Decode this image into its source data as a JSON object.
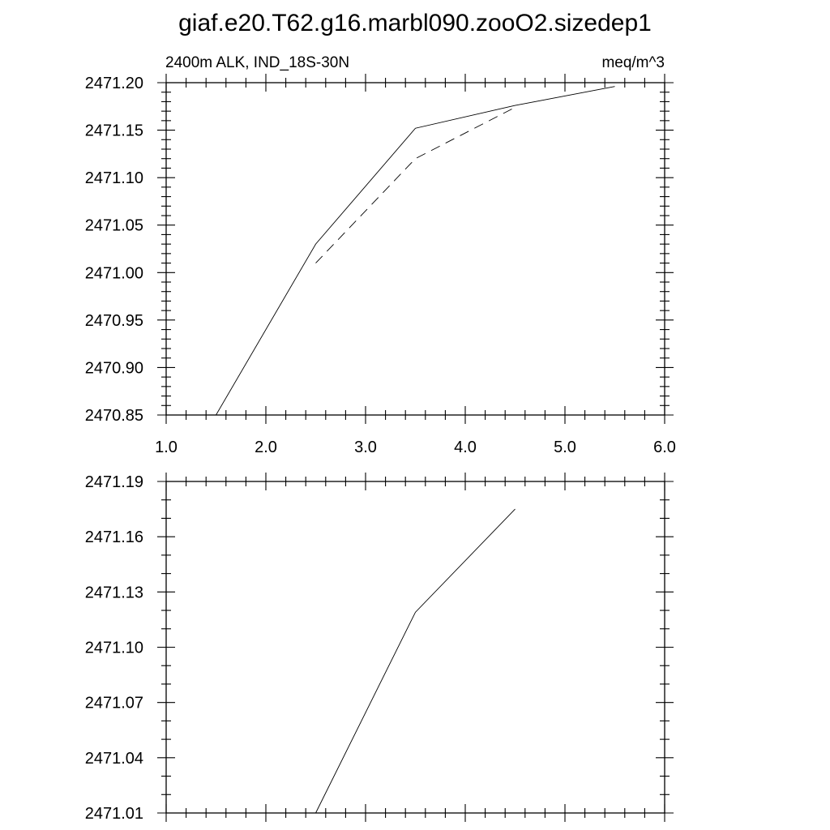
{
  "title": "giaf.e20.T62.g16.marbl090.zooO2.sizedep1",
  "chart_data": [
    {
      "type": "line",
      "left_label": "2400m ALK, IND_18S-30N",
      "right_label": "meq/m^3",
      "xlim": [
        1.0,
        6.0
      ],
      "ylim": [
        2470.85,
        2471.2
      ],
      "x_tick_labels": [
        "1.0",
        "2.0",
        "3.0",
        "4.0",
        "5.0",
        "6.0"
      ],
      "y_tick_labels": [
        "2470.85",
        "2470.90",
        "2470.95",
        "2471.00",
        "2471.05",
        "2471.10",
        "2471.15",
        "2471.20"
      ],
      "series": [
        {
          "style": "solid",
          "x": [
            1.5,
            2.5,
            3.5,
            4.5,
            5.5
          ],
          "y": [
            2470.85,
            2471.03,
            2471.152,
            2471.176,
            2471.196
          ]
        },
        {
          "style": "dashed",
          "x": [
            2.5,
            3.5,
            4.5
          ],
          "y": [
            2471.01,
            2471.12,
            2471.174
          ]
        }
      ]
    },
    {
      "type": "line",
      "xlim": [
        1.0,
        6.0
      ],
      "ylim": [
        2471.01,
        2471.19
      ],
      "x_tick_labels": [
        "",
        "",
        "",
        "",
        "",
        ""
      ],
      "y_tick_labels": [
        "2471.01",
        "2471.04",
        "2471.07",
        "2471.10",
        "2471.13",
        "2471.16",
        "2471.19"
      ],
      "series": [
        {
          "style": "solid",
          "x": [
            2.5,
            3.5,
            4.5
          ],
          "y": [
            2471.01,
            2471.119,
            2471.175
          ]
        }
      ]
    }
  ]
}
